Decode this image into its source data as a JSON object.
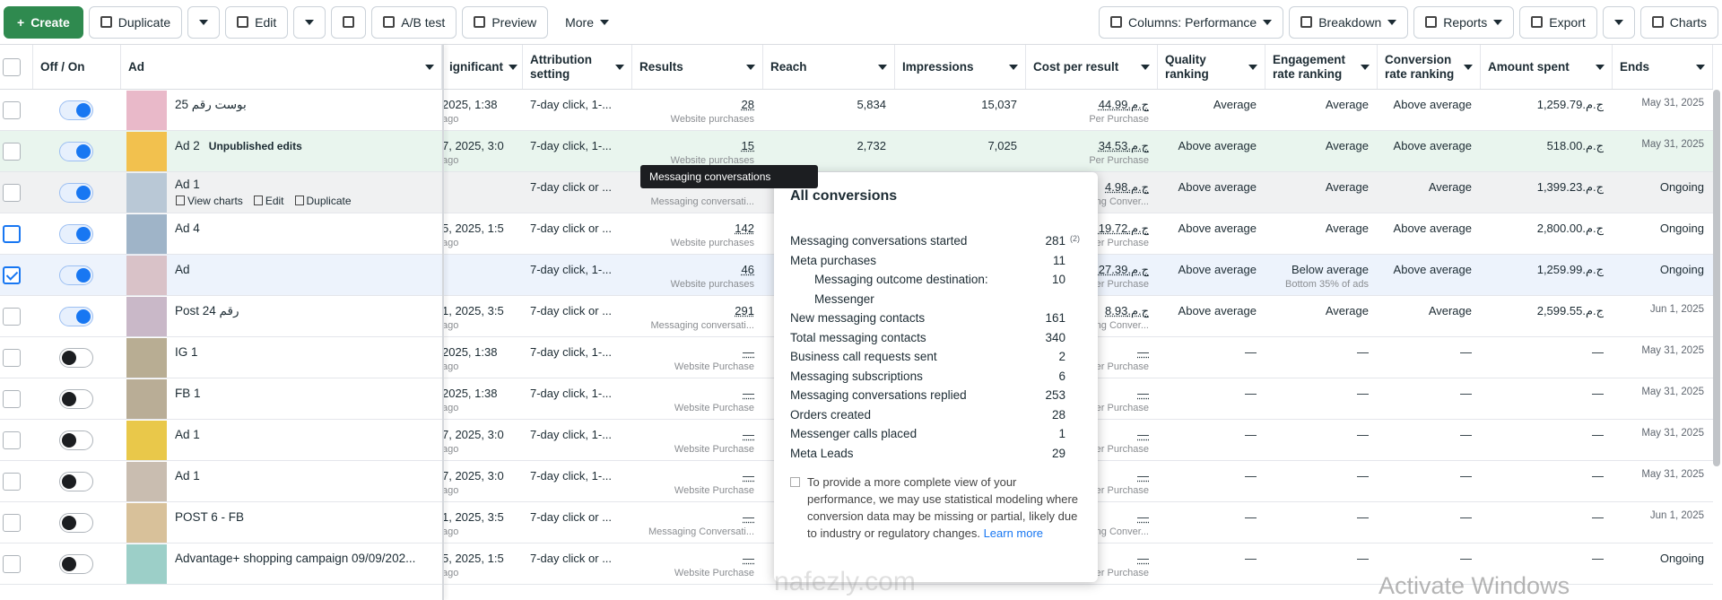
{
  "toolbar": {
    "create": "Create",
    "duplicate": "Duplicate",
    "edit": "Edit",
    "ab_test": "A/B test",
    "preview": "Preview",
    "more": "More",
    "columns": "Columns: Performance",
    "breakdown": "Breakdown",
    "reports": "Reports",
    "export": "Export",
    "charts": "Charts"
  },
  "table": {
    "headers": [
      "Off / On",
      "Ad",
      "ignificant",
      "Attribution setting",
      "Results",
      "Reach",
      "Impressions",
      "Cost per result",
      "Quality ranking",
      "Engagement rate ranking",
      "Conversion rate ranking",
      "Amount spent",
      "Ends"
    ],
    "rows": [
      {
        "on": true,
        "name": "بوست رقم 25",
        "date": "2025, 1:38",
        "ago": "ago",
        "attribution": "7-day click, 1-...",
        "results": "28",
        "results_sub": "Website purchases",
        "reach": "5,834",
        "impressions": "15,037",
        "cost": "ج.م.44.99",
        "cost_sub": "Per Purchase",
        "quality": "Average",
        "engagement": "Average",
        "conversion": "Above average",
        "amount": "ج.م.1,259.79",
        "ends": "May 31, 2025"
      },
      {
        "on": true,
        "name": "Ad 2",
        "badge": "Unpublished edits",
        "date": "7, 2025, 3:0",
        "ago": "ago",
        "attribution": "7-day click, 1-...",
        "results": "15",
        "results_sub": "Website purchases",
        "reach": "2,732",
        "impressions": "7,025",
        "cost": "ج.م.34.53",
        "cost_sub": "Per Purchase",
        "quality": "Above average",
        "engagement": "Average",
        "conversion": "Above average",
        "amount": "ج.م.518.00",
        "ends": "May 31, 2025"
      },
      {
        "on": true,
        "name": "Ad 1",
        "actions": {
          "view_charts": "View charts",
          "edit": "Edit",
          "duplicate": "Duplicate"
        },
        "attribution": "7-day click or ...",
        "results_sub": "Messaging conversati...",
        "cost": "ج.م.4.98",
        "cost_sub": "Messaging Conver...",
        "quality": "Above average",
        "engagement": "Average",
        "conversion": "Average",
        "amount": "ج.م.1,399.23",
        "ends": "Ongoing"
      },
      {
        "on": true,
        "name": "Ad 4",
        "date": "5, 2025, 1:5",
        "ago": "ago",
        "attribution": "7-day click or ...",
        "results": "142",
        "results_sub": "Website purchases",
        "cost": "ج.م.19.72",
        "cost_sub": "Per Purchase",
        "quality": "Above average",
        "engagement": "Average",
        "conversion": "Above average",
        "amount": "ج.م.2,800.00",
        "ends": "Ongoing"
      },
      {
        "on": true,
        "checked": true,
        "name": "Ad",
        "attribution": "7-day click, 1-...",
        "results": "46",
        "results_sub": "Website purchases",
        "cost": "ج.م.27.39",
        "cost_sub": "Per Purchase",
        "quality": "Above average",
        "engagement": "Below average",
        "engagement_sub": "Bottom 35% of ads",
        "conversion": "Above average",
        "amount": "ج.م.1,259.99",
        "ends": "Ongoing"
      },
      {
        "on": true,
        "name": "Post 24 رقم",
        "date": "1, 2025, 3:5",
        "ago": "ago",
        "attribution": "7-day click or ...",
        "results": "291",
        "results_sub": "Messaging conversati...",
        "cost": "ج.م.8.93",
        "cost_sub": "Messaging Conver...",
        "quality": "Above average",
        "engagement": "Average",
        "conversion": "Average",
        "amount": "ج.م.2,599.55",
        "ends": "Jun 1, 2025"
      },
      {
        "on": false,
        "name": "IG 1",
        "date": "2025, 1:38",
        "ago": "ago",
        "attribution": "7-day click, 1-...",
        "results": "—",
        "results_sub": "Website Purchase",
        "cost": "—",
        "cost_sub": "Per Purchase",
        "quality": "—",
        "engagement": "—",
        "conversion": "—",
        "amount": "—",
        "ends": "May 31, 2025"
      },
      {
        "on": false,
        "name": "FB 1",
        "date": "2025, 1:38",
        "ago": "ago",
        "attribution": "7-day click, 1-...",
        "results": "—",
        "results_sub": "Website Purchase",
        "cost": "—",
        "cost_sub": "Per Purchase",
        "quality": "—",
        "engagement": "—",
        "conversion": "—",
        "amount": "—",
        "ends": "May 31, 2025"
      },
      {
        "on": false,
        "name": "Ad 1",
        "date": "7, 2025, 3:0",
        "ago": "ago",
        "attribution": "7-day click, 1-...",
        "results": "—",
        "results_sub": "Website Purchase",
        "cost": "—",
        "cost_sub": "Per Purchase",
        "quality": "—",
        "engagement": "—",
        "conversion": "—",
        "amount": "—",
        "ends": "May 31, 2025"
      },
      {
        "on": false,
        "name": "Ad 1",
        "date": "7, 2025, 3:0",
        "ago": "ago",
        "attribution": "7-day click, 1-...",
        "results": "—",
        "results_sub": "Website Purchase",
        "cost": "—",
        "cost_sub": "Per Purchase",
        "quality": "—",
        "engagement": "—",
        "conversion": "—",
        "amount": "—",
        "ends": "May 31, 2025"
      },
      {
        "on": false,
        "name": "POST 6 - FB",
        "date": "1, 2025, 3:5",
        "ago": "ago",
        "attribution": "7-day click or ...",
        "results": "—",
        "results_sub": "Messaging Conversati...",
        "cost": "—",
        "cost_sub": "Messaging Conver...",
        "quality": "—",
        "engagement": "—",
        "conversion": "—",
        "amount": "—",
        "ends": "Jun 1, 2025"
      },
      {
        "on": false,
        "name": "Advantage+ shopping campaign 09/09/202...",
        "date": "5, 2025, 1:5",
        "ago": "ago",
        "attribution": "7-day click or ...",
        "results": "—",
        "results_sub": "Website Purchase",
        "cost": "—",
        "cost_sub": "Per Purchase",
        "quality": "—",
        "engagement": "—",
        "conversion": "—",
        "amount": "—",
        "ends": "Ongoing"
      }
    ]
  },
  "tooltip": "Messaging conversations",
  "popup": {
    "title": "All conversions",
    "items": [
      {
        "label": "Messaging conversations started",
        "value": "281",
        "note": "(2)"
      },
      {
        "label": "Meta purchases",
        "value": "11"
      },
      {
        "label": "Messaging outcome destination: Messenger",
        "value": "10",
        "indent": true
      },
      {
        "label": "New messaging contacts",
        "value": "161"
      },
      {
        "label": "Total messaging contacts",
        "value": "340"
      },
      {
        "label": "Business call requests sent",
        "value": "2"
      },
      {
        "label": "Messaging subscriptions",
        "value": "6"
      },
      {
        "label": "Messaging conversations replied",
        "value": "253"
      },
      {
        "label": "Orders created",
        "value": "28"
      },
      {
        "label": "Messenger calls placed",
        "value": "1"
      },
      {
        "label": "Meta Leads",
        "value": "29"
      }
    ],
    "note": "To provide a more complete view of your performance, we may use statistical modeling where conversion data may be missing or partial, likely due to industry or regulatory changes.",
    "link": "Learn more"
  },
  "watermarks": {
    "windows": "Activate Windows",
    "site": "nafezly.com"
  }
}
